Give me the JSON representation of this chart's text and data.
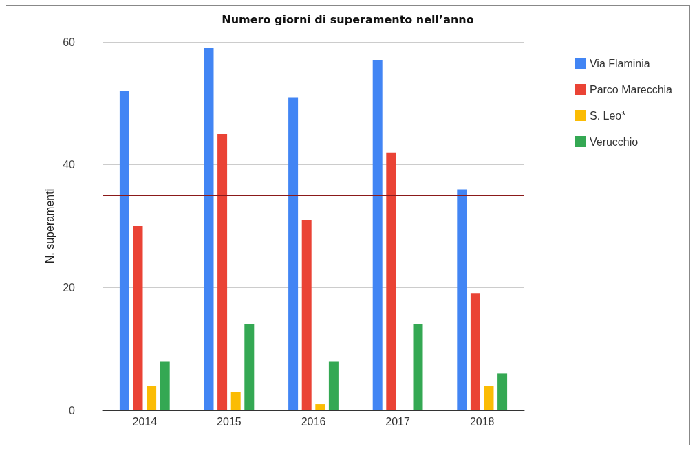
{
  "chart_data": {
    "type": "bar",
    "title": "Numero giorni di superamento nell’anno",
    "ylabel": "N. superamenti",
    "categories": [
      "2014",
      "2015",
      "2016",
      "2017",
      "2018"
    ],
    "series": [
      {
        "name": "Via Flaminia",
        "color": "#4285f4",
        "values": [
          52,
          59,
          51,
          57,
          36
        ]
      },
      {
        "name": "Parco Marecchia",
        "color": "#ea4335",
        "values": [
          30,
          45,
          31,
          42,
          19
        ]
      },
      {
        "name": "S. Leo*",
        "color": "#fbbc04",
        "values": [
          4,
          3,
          1,
          null,
          4
        ]
      },
      {
        "name": "Verucchio",
        "color": "#34a853",
        "values": [
          8,
          14,
          8,
          14,
          6
        ]
      }
    ],
    "ylim": [
      0,
      60
    ],
    "yticks": [
      0,
      20,
      40,
      60
    ],
    "grid": "y",
    "legend": "top right",
    "ref_lines": [
      {
        "axis": "y",
        "value": 35,
        "color": "#8b1a1a"
      }
    ]
  }
}
